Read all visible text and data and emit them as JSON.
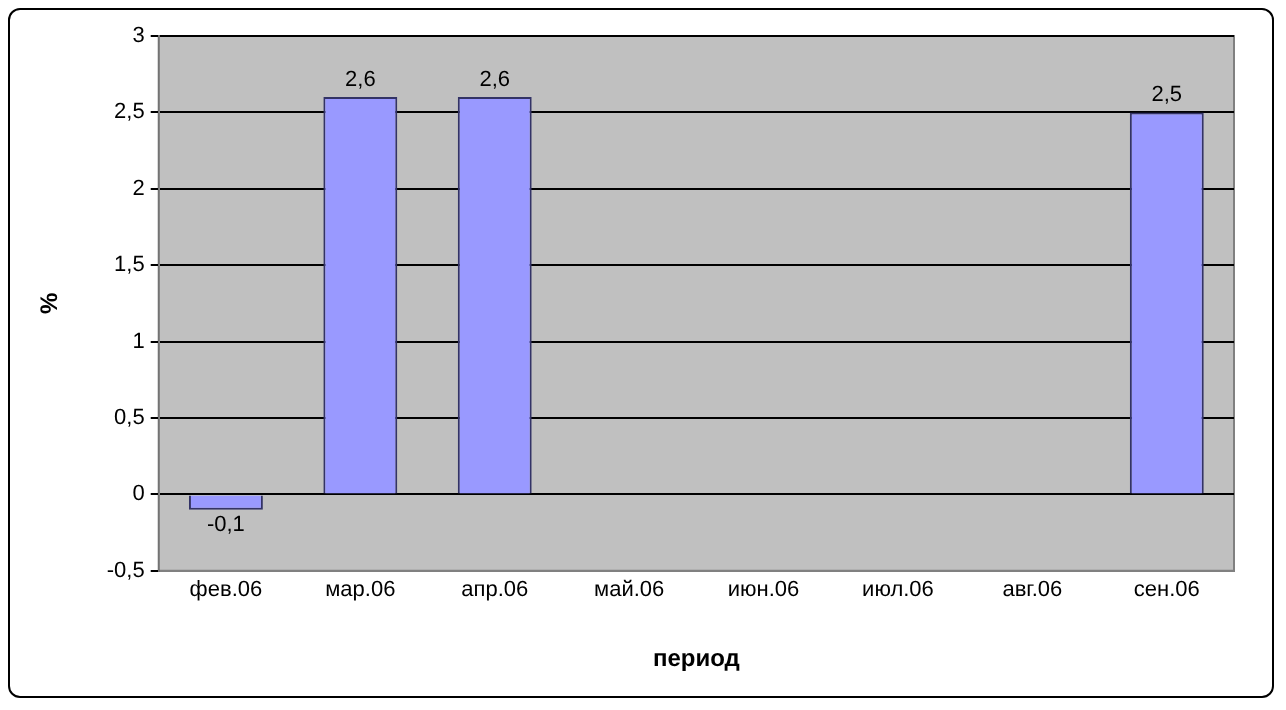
{
  "chart_data": {
    "type": "bar",
    "xlabel": "период",
    "ylabel": "%",
    "categories": [
      "фев.06",
      "мар.06",
      "апр.06",
      "май.06",
      "июн.06",
      "июл.06",
      "авг.06",
      "сен.06"
    ],
    "values": [
      -0.1,
      2.6,
      2.6,
      null,
      null,
      null,
      null,
      2.5
    ],
    "value_labels": [
      "-0,1",
      "2,6",
      "2,6",
      null,
      null,
      null,
      null,
      "2,5"
    ],
    "color": "#9999ff",
    "ylim": [
      -0.5,
      3
    ],
    "yticks": [
      {
        "value": -0.5,
        "label": "-0,5"
      },
      0,
      {
        "value": 0.5,
        "label": "0,5"
      },
      1,
      {
        "value": 1.5,
        "label": "1,5"
      },
      2,
      {
        "value": 2.5,
        "label": "2,5"
      },
      3
    ],
    "grid": "y",
    "legend": false
  }
}
